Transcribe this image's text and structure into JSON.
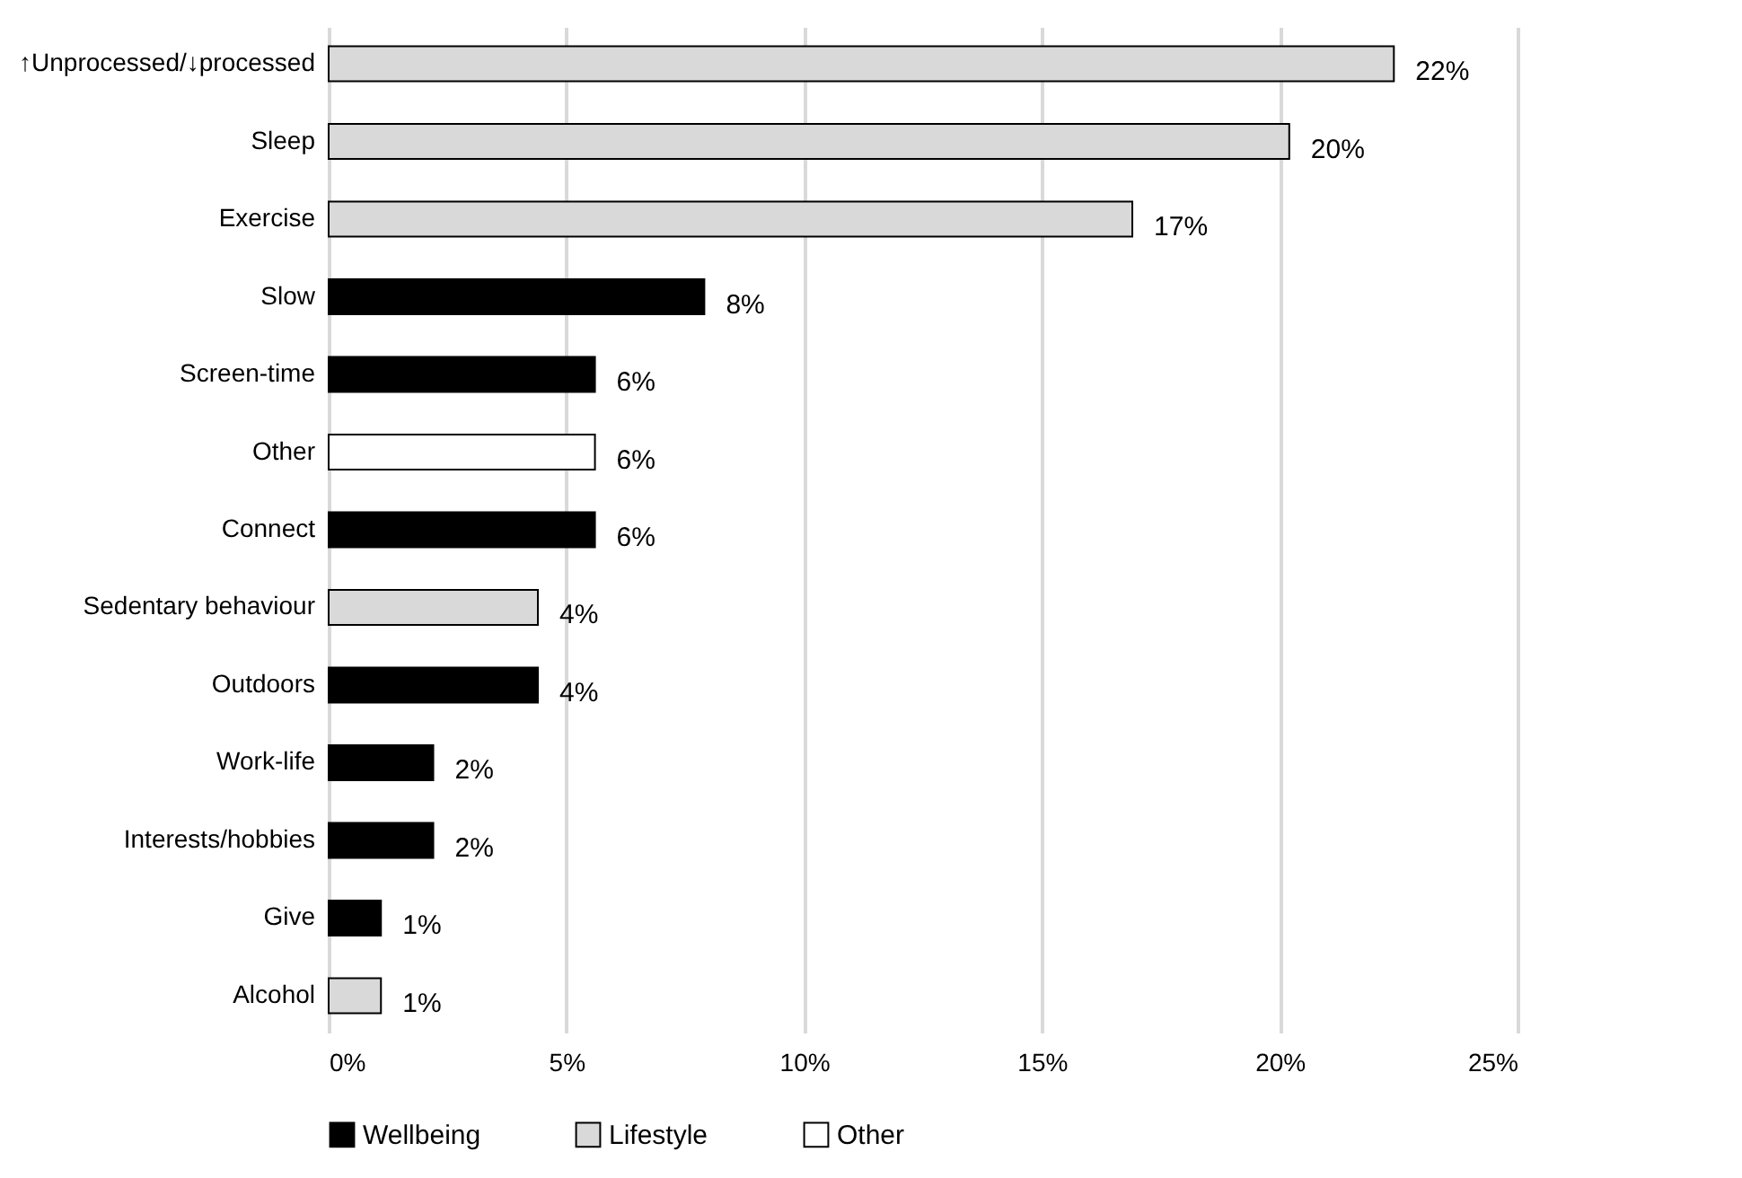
{
  "chart_data": {
    "type": "bar",
    "orientation": "horizontal",
    "categories": [
      "↑Unprocessed/↓processed",
      "Sleep",
      "Exercise",
      "Slow",
      "Screen-time",
      "Other",
      "Connect",
      "Sedentary behaviour",
      "Outdoors",
      "Work-life",
      "Interests/hobbies",
      "Give",
      "Alcohol"
    ],
    "series": [
      {
        "name": "Wellbeing",
        "color": "#000000",
        "values": [
          null,
          null,
          null,
          7.9,
          5.6,
          null,
          5.6,
          null,
          4.4,
          2.2,
          2.2,
          1.1,
          null
        ],
        "value_labels": [
          null,
          null,
          null,
          "8%",
          "6%",
          null,
          "6%",
          null,
          "4%",
          "2%",
          "2%",
          "1%",
          null
        ]
      },
      {
        "name": "Lifestyle",
        "color": "#d9d9d9",
        "values": [
          22.4,
          20.2,
          16.9,
          null,
          null,
          null,
          null,
          4.4,
          null,
          null,
          null,
          null,
          1.1
        ],
        "value_labels": [
          "22%",
          "20%",
          "17%",
          null,
          null,
          null,
          null,
          "4%",
          null,
          null,
          null,
          null,
          "1%"
        ]
      },
      {
        "name": "Other",
        "color": "#ffffff",
        "values": [
          null,
          null,
          null,
          null,
          null,
          5.6,
          null,
          null,
          null,
          null,
          null,
          null,
          null
        ],
        "value_labels": [
          null,
          null,
          null,
          null,
          null,
          "6%",
          null,
          null,
          null,
          null,
          null,
          null,
          null
        ]
      }
    ],
    "xlim": [
      0,
      25
    ],
    "xticks": [
      {
        "value": 0,
        "label": "0%"
      },
      {
        "value": 5,
        "label": "5%"
      },
      {
        "value": 10,
        "label": "10%"
      },
      {
        "value": 15,
        "label": "15%"
      },
      {
        "value": 20,
        "label": "20%"
      },
      {
        "value": 25,
        "label": "25%"
      }
    ],
    "grid": "x",
    "legend": "bottom"
  }
}
